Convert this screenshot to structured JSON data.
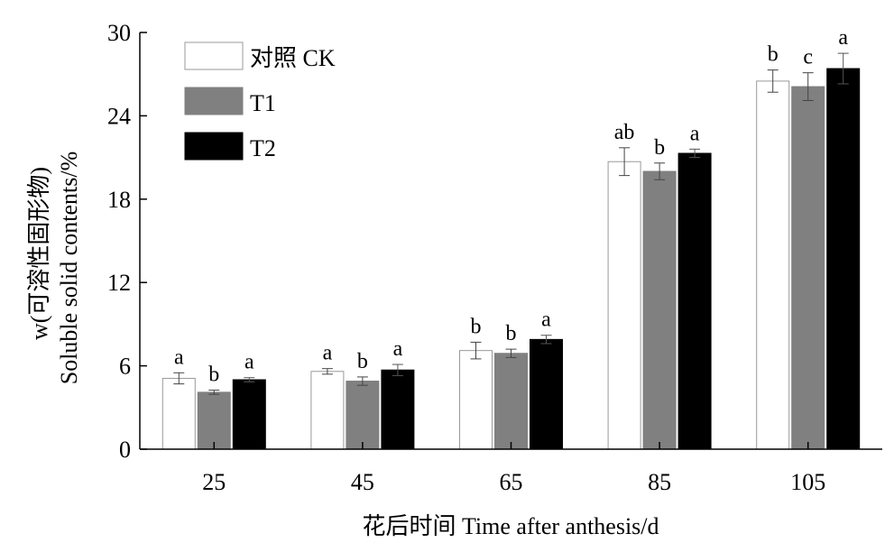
{
  "chart_data": {
    "type": "bar",
    "title": "",
    "xlabel": "花后时间 Time after anthesis/d",
    "ylabel_line1": "w(可溶性固形物)",
    "ylabel_line2": "Soluble solid contents/%",
    "ylim": [
      0,
      30
    ],
    "yticks": [
      "0",
      "6",
      "12",
      "18",
      "24",
      "30"
    ],
    "categories": [
      "25",
      "45",
      "65",
      "85",
      "105"
    ],
    "legend_position": "top-left",
    "series": [
      {
        "name": "对照 CK",
        "fill": "#ffffff",
        "values": [
          5.1,
          5.6,
          7.1,
          20.7,
          26.5
        ],
        "errors": [
          0.4,
          0.2,
          0.6,
          1.0,
          0.8
        ],
        "letters": [
          "a",
          "a",
          "b",
          "ab",
          "b"
        ]
      },
      {
        "name": "T1",
        "fill": "#808080",
        "values": [
          4.1,
          4.9,
          6.9,
          20.0,
          26.1
        ],
        "errors": [
          0.15,
          0.3,
          0.3,
          0.6,
          1.0
        ],
        "letters": [
          "b",
          "b",
          "b",
          "b",
          "c"
        ]
      },
      {
        "name": "T2",
        "fill": "#000000",
        "values": [
          5.0,
          5.7,
          7.9,
          21.3,
          27.4
        ],
        "errors": [
          0.15,
          0.4,
          0.3,
          0.3,
          1.1
        ],
        "letters": [
          "a",
          "a",
          "a",
          "a",
          "a"
        ]
      }
    ]
  }
}
